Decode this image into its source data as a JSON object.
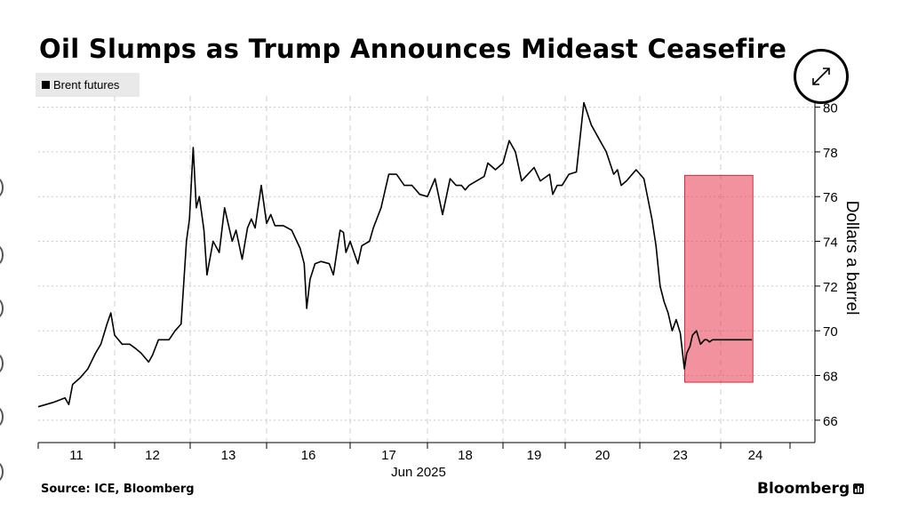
{
  "chart_data": {
    "type": "line",
    "title": "Oil Slumps as Trump Announces Mideast Ceasefire",
    "ylabel": "Dollars a barrel",
    "xlabel": "Jun 2025",
    "ylim": [
      65,
      80.5
    ],
    "yticks": [
      66,
      68,
      70,
      72,
      74,
      76,
      78,
      80
    ],
    "y_axis_side": "right",
    "grid": true,
    "legend_position": "top-left",
    "x_ticks": [
      "11",
      "12",
      "13",
      "16",
      "17",
      "18",
      "19",
      "20",
      "23",
      "24"
    ],
    "x_tick_positions": [
      0.5,
      1.5,
      2.5,
      3.5,
      4.5,
      5.5,
      6.5,
      7.5,
      8.5,
      9.5
    ],
    "x_range": [
      0,
      10
    ],
    "series": [
      {
        "name": "Brent futures",
        "color": "#000000",
        "x": [
          0.0,
          0.2,
          0.35,
          0.4,
          0.45,
          0.55,
          0.65,
          0.75,
          0.82,
          0.9,
          0.95,
          1.0,
          1.1,
          1.2,
          1.28,
          1.35,
          1.45,
          1.5,
          1.58,
          1.65,
          1.72,
          1.8,
          1.88,
          1.95,
          1.99,
          2.04,
          2.08,
          2.12,
          2.18,
          2.22,
          2.3,
          2.38,
          2.45,
          2.55,
          2.6,
          2.68,
          2.75,
          2.8,
          2.85,
          2.93,
          3.0,
          3.05,
          3.1,
          3.2,
          3.3,
          3.4,
          3.45,
          3.48,
          3.52,
          3.58,
          3.65,
          3.75,
          3.8,
          3.88,
          3.92,
          3.95,
          4.0,
          4.1,
          4.15,
          4.25,
          4.3,
          4.4,
          4.5,
          4.6,
          4.7,
          4.8,
          4.9,
          5.0,
          5.1,
          5.2,
          5.3,
          5.38,
          5.45,
          5.5,
          5.55,
          5.65,
          5.75,
          5.8,
          5.9,
          6.0,
          6.1,
          6.2,
          6.3,
          6.4,
          6.5,
          6.6,
          6.7,
          6.75,
          6.8,
          6.87,
          6.95,
          7.05,
          7.15,
          7.25,
          7.35,
          7.45,
          7.55,
          7.65,
          7.7,
          7.75,
          7.82,
          7.95,
          8.05,
          8.15,
          8.2,
          8.25,
          8.3,
          8.35,
          8.4,
          8.45,
          8.5,
          8.55,
          8.58,
          8.62,
          8.65,
          8.7,
          8.75,
          8.8,
          8.83,
          8.86,
          8.9,
          8.95,
          9.0,
          9.03,
          9.06,
          9.1,
          9.15,
          9.2,
          9.25,
          9.3,
          9.35,
          9.4,
          9.45
        ],
        "values": [
          66.6,
          66.8,
          67.0,
          66.7,
          67.6,
          67.9,
          68.3,
          69.0,
          69.4,
          70.3,
          70.8,
          69.8,
          69.4,
          69.4,
          69.2,
          69.0,
          68.6,
          68.9,
          69.6,
          69.6,
          69.6,
          70.0,
          70.3,
          74.0,
          75.0,
          78.2,
          75.5,
          76.0,
          74.5,
          72.5,
          74.0,
          73.5,
          75.5,
          74.0,
          74.5,
          73.2,
          74.6,
          75.0,
          74.6,
          76.5,
          74.8,
          75.2,
          74.7,
          74.7,
          74.5,
          73.7,
          73.0,
          71.0,
          72.3,
          73.0,
          73.1,
          73.0,
          72.5,
          74.5,
          74.4,
          73.5,
          74.0,
          73.0,
          73.8,
          74.0,
          74.6,
          75.5,
          77.0,
          77.0,
          76.5,
          76.5,
          76.1,
          76.0,
          76.8,
          75.2,
          76.8,
          76.5,
          76.5,
          76.3,
          76.5,
          76.7,
          76.9,
          77.5,
          77.2,
          77.5,
          78.5,
          78.0,
          76.7,
          77.0,
          77.3,
          76.7,
          76.9,
          77.0,
          76.1,
          76.5,
          76.5,
          77.0,
          77.1,
          80.2,
          79.2,
          78.6,
          78.0,
          77.0,
          77.2,
          76.5,
          76.7,
          77.2,
          76.8,
          75.0,
          73.8,
          72.0,
          71.3,
          70.8,
          70.0,
          70.5,
          69.9,
          68.3,
          69.0,
          69.3,
          69.8,
          70.0,
          69.4,
          69.6,
          69.6,
          69.5,
          69.6,
          69.6,
          69.6,
          69.6,
          69.6,
          69.6,
          69.6,
          69.6,
          69.6,
          69.6,
          69.6,
          69.6,
          69.6
        ]
      }
    ],
    "highlight_region": {
      "color": "#e8394e",
      "opacity": 0.55,
      "y_range": [
        67.7,
        76.95
      ],
      "x_range_ticks": [
        "23",
        "24"
      ],
      "x_range": [
        8.5,
        9.4
      ]
    }
  },
  "legend": {
    "label": "Brent futures"
  },
  "footer": {
    "source": "Source: ICE, Bloomberg",
    "brand": "Bloomberg"
  },
  "icons": {
    "expand": "expand-icon"
  }
}
